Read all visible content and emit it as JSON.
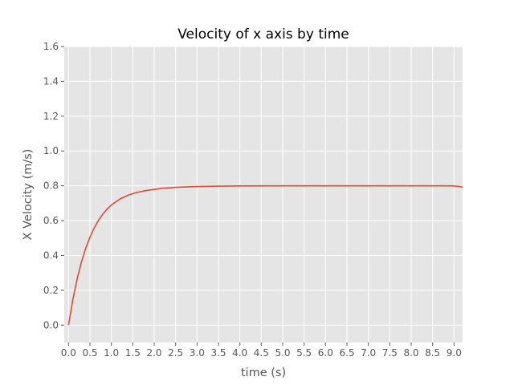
{
  "chart_data": {
    "type": "line",
    "title": "Velocity of x axis by time",
    "xlabel": "time (s)",
    "ylabel": "X Velocity (m/s)",
    "xlim": [
      -0.1,
      9.2
    ],
    "ylim": [
      -0.1,
      1.6
    ],
    "xticks": [
      0.0,
      0.5,
      1.0,
      1.5,
      2.0,
      2.5,
      3.0,
      3.5,
      4.0,
      4.5,
      5.0,
      5.5,
      6.0,
      6.5,
      7.0,
      7.5,
      8.0,
      8.5,
      9.0
    ],
    "xtick_labels": [
      "0.0",
      "0.5",
      "1.0",
      "1.5",
      "2.0",
      "2.5",
      "3.0",
      "3.5",
      "4.0",
      "4.5",
      "5.0",
      "5.5",
      "6.0",
      "6.5",
      "7.0",
      "7.5",
      "8.0",
      "8.5",
      "9.0"
    ],
    "yticks": [
      0.0,
      0.2,
      0.4,
      0.6,
      0.8,
      1.0,
      1.2,
      1.4,
      1.6
    ],
    "ytick_labels": [
      "0.0",
      "0.2",
      "0.4",
      "0.6",
      "0.8",
      "1.0",
      "1.2",
      "1.4",
      "1.6"
    ],
    "grid": true,
    "series": [
      {
        "color": "#e24a33",
        "x": [
          0.0,
          0.1,
          0.2,
          0.3,
          0.4,
          0.5,
          0.6,
          0.7,
          0.8,
          0.9,
          1.0,
          1.2,
          1.4,
          1.6,
          1.8,
          2.0,
          2.2,
          2.5,
          3.0,
          3.5,
          4.0,
          5.0,
          6.0,
          7.0,
          8.0,
          8.5,
          8.8,
          9.0,
          9.1,
          9.2
        ],
        "y": [
          0.0,
          0.145,
          0.264,
          0.361,
          0.44,
          0.505,
          0.558,
          0.602,
          0.637,
          0.666,
          0.69,
          0.724,
          0.747,
          0.762,
          0.772,
          0.779,
          0.786,
          0.791,
          0.796,
          0.798,
          0.799,
          0.8,
          0.8,
          0.8,
          0.8,
          0.8,
          0.8,
          0.799,
          0.797,
          0.793
        ]
      }
    ]
  }
}
